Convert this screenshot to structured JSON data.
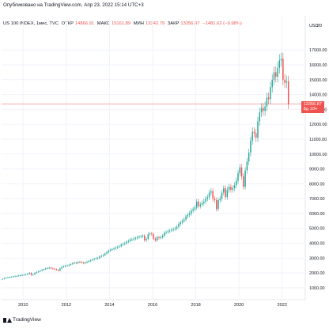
{
  "header": {
    "published_line": "Опубликовано на TradingView.com, Апр 23, 2022 15:14 UTC+3"
  },
  "legend": {
    "symbol_label": "US 100 INDEX, 1мес, TVC",
    "open_label": "ОТКР",
    "open_value": "14866.91",
    "high_label": "МАКС",
    "high_value": "15161.89",
    "low_label": "МИН",
    "low_value": "13342.79",
    "close_label": "ЗАКР",
    "close_value": "13356.87",
    "change_value": "−1481.62 (−9.98%)"
  },
  "price_tag": {
    "price": "13356.87",
    "timer": "8д 10ч"
  },
  "footer": {
    "brand": "TradingView"
  },
  "colors": {
    "up": "#26a69a",
    "down": "#ef5350",
    "grid": "#f0f3fa",
    "axis_text": "#131722",
    "last_price_line": "#ef5350"
  },
  "chart_data": {
    "type": "candlestick",
    "title": "US 100 INDEX, 1мес, TVC",
    "xlabel": "",
    "ylabel": "",
    "x_ticks": [
      "2010",
      "2012",
      "2014",
      "2016",
      "2018",
      "2020",
      "2022"
    ],
    "y_ticks": [
      1000,
      2000,
      3000,
      4000,
      5000,
      6000,
      7000,
      8000,
      9000,
      10000,
      11000,
      12000,
      13000,
      14000,
      15000,
      16000,
      17000
    ],
    "y_tick_labels": [
      "1000.00",
      "2000.00",
      "3000.00",
      "4000.00",
      "5000.00",
      "6000.00",
      "7000.00",
      "8000.00",
      "9000.00",
      "10000.00",
      "11000.00",
      "12000.00",
      "13000.00",
      "14000.00",
      "15000.00",
      "16000.00",
      "17000.00"
    ],
    "x_range": [
      "2009-01",
      "2022-12"
    ],
    "y_range": [
      250,
      19300
    ],
    "currency_label": "USD",
    "extra_axis_value": "20",
    "last_close": 13356.87,
    "monthly_closes": [
      1600,
      1650,
      1680,
      1700,
      1720,
      1740,
      1760,
      1780,
      1800,
      1820,
      1840,
      1860,
      1880,
      1900,
      1950,
      2000,
      1860,
      1900,
      2000,
      2050,
      2100,
      2150,
      2200,
      2250,
      2300,
      2320,
      2350,
      2300,
      2280,
      2250,
      2200,
      2150,
      2300,
      2400,
      2450,
      2480,
      2500,
      2550,
      2600,
      2650,
      2700,
      2650,
      2720,
      2750,
      2700,
      2650,
      2700,
      2750,
      2800,
      2850,
      2900,
      2950,
      2980,
      3000,
      3100,
      3150,
      3200,
      3300,
      3400,
      3500,
      3550,
      3600,
      3650,
      3700,
      3750,
      3800,
      3900,
      3950,
      4000,
      4100,
      4150,
      4250,
      4250,
      4300,
      4350,
      4400,
      4450,
      4450,
      4500,
      4200,
      4300,
      4600,
      4650,
      4600,
      4300,
      4200,
      4400,
      4350,
      4400,
      4500,
      4700,
      4750,
      4800,
      4850,
      4900,
      4950,
      5000,
      5100,
      5300,
      5400,
      5500,
      5600,
      5800,
      5900,
      6000,
      6200,
      6300,
      6400,
      6800,
      6500,
      6600,
      6700,
      6800,
      7000,
      7100,
      7400,
      7500,
      7000,
      6900,
      6300,
      6900,
      7000,
      7400,
      7700,
      7100,
      7600,
      7800,
      7600,
      7700,
      7900,
      8200,
      8700,
      9100,
      8500,
      7800,
      8900,
      9500,
      10100,
      10900,
      11500,
      11400,
      11100,
      12200,
      12800,
      13100,
      12900,
      13200,
      13800,
      13700,
      14500,
      15000,
      15500,
      15200,
      15800,
      16300,
      16400,
      15000,
      14800,
      14900,
      13356.87
    ]
  }
}
